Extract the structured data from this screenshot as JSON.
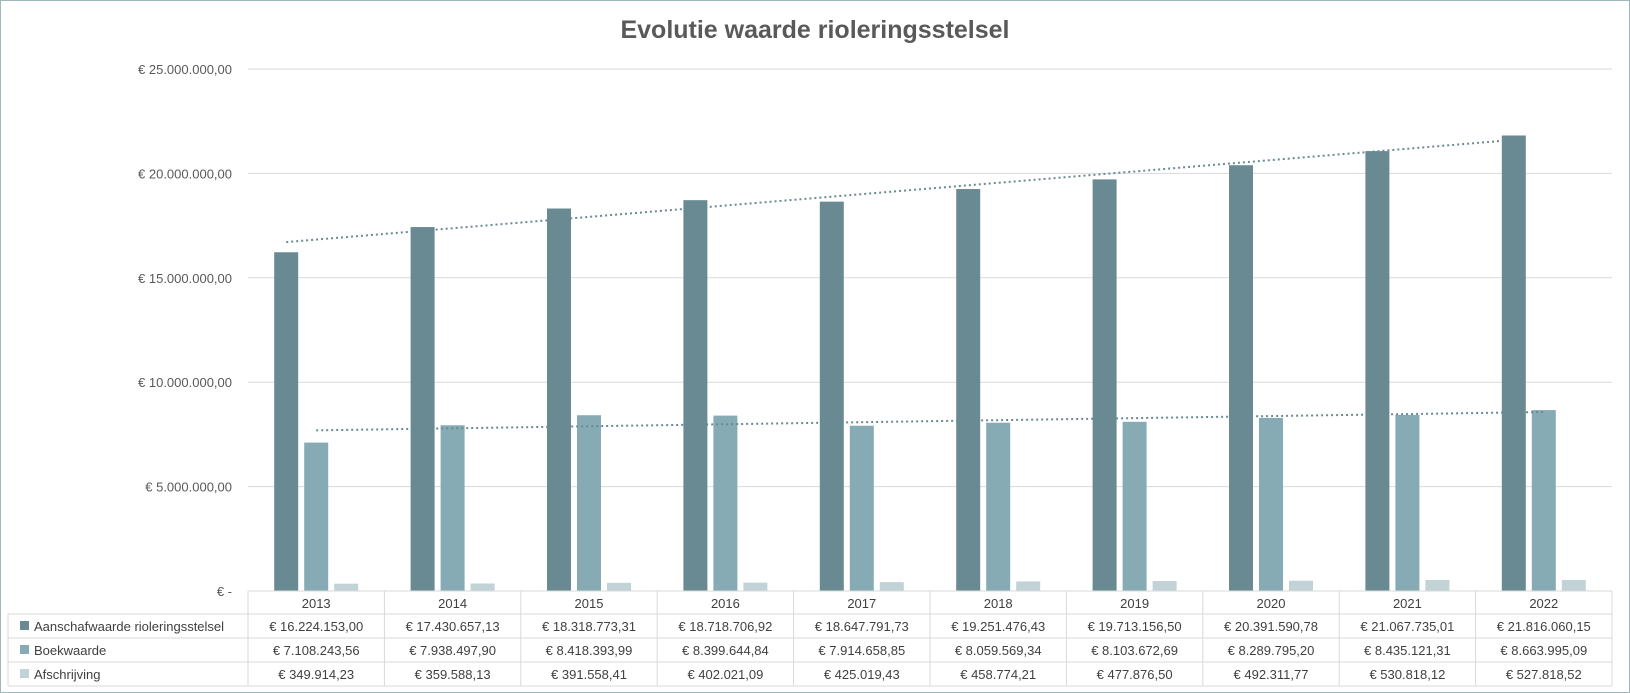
{
  "chart_data": {
    "type": "bar",
    "title": "Evolutie waarde rioleringsstelsel",
    "xlabel": "",
    "ylabel": "",
    "ylim": [
      0,
      25000000
    ],
    "ytick_labels": [
      "€ -",
      "€ 5.000.000,00",
      "€ 10.000.000,00",
      "€ 15.000.000,00",
      "€ 20.000.000,00",
      "€ 25.000.000,00"
    ],
    "ytick_values": [
      0,
      5000000,
      10000000,
      15000000,
      20000000,
      25000000
    ],
    "grid": true,
    "legend": "data-table",
    "trendlines": [
      "linear Aanschafwaarde rioleringsstelsel",
      "linear Boekwaarde"
    ],
    "categories": [
      "2013",
      "2014",
      "2015",
      "2016",
      "2017",
      "2018",
      "2019",
      "2020",
      "2021",
      "2022"
    ],
    "series": [
      {
        "name": "Aanschafwaarde rioleringsstelsel",
        "color": "#6a8a93",
        "values": [
          16224153.0,
          17430657.13,
          18318773.31,
          18718706.92,
          18647791.73,
          19251476.43,
          19713156.5,
          20391590.78,
          21067735.01,
          21816060.15
        ],
        "labels": [
          "€ 16.224.153,00",
          "€ 17.430.657,13",
          "€ 18.318.773,31",
          "€ 18.718.706,92",
          "€ 18.647.791,73",
          "€ 19.251.476,43",
          "€ 19.713.156,50",
          "€ 20.391.590,78",
          "€ 21.067.735,01",
          "€ 21.816.060,15"
        ]
      },
      {
        "name": "Boekwaarde",
        "color": "#87abb5",
        "values": [
          7108243.56,
          7938497.9,
          8418393.99,
          8399644.84,
          7914658.85,
          8059569.34,
          8103672.69,
          8289795.2,
          8435121.31,
          8663995.09
        ],
        "labels": [
          "€ 7.108.243,56",
          "€ 7.938.497,90",
          "€ 8.418.393,99",
          "€ 8.399.644,84",
          "€ 7.914.658,85",
          "€ 8.059.569,34",
          "€ 8.103.672,69",
          "€ 8.289.795,20",
          "€ 8.435.121,31",
          "€ 8.663.995,09"
        ]
      },
      {
        "name": "Afschrijving",
        "color": "#c2d3d8",
        "values": [
          349914.23,
          359588.13,
          391558.41,
          402021.09,
          425019.43,
          458774.21,
          477876.5,
          492311.77,
          530818.12,
          527818.52
        ],
        "labels": [
          "€ 349.914,23",
          "€ 359.588,13",
          "€ 391.558,41",
          "€ 402.021,09",
          "€ 425.019,43",
          "€ 458.774,21",
          "€ 477.876,50",
          "€ 492.311,77",
          "€ 530.818,12",
          "€ 527.818,52"
        ]
      }
    ]
  }
}
